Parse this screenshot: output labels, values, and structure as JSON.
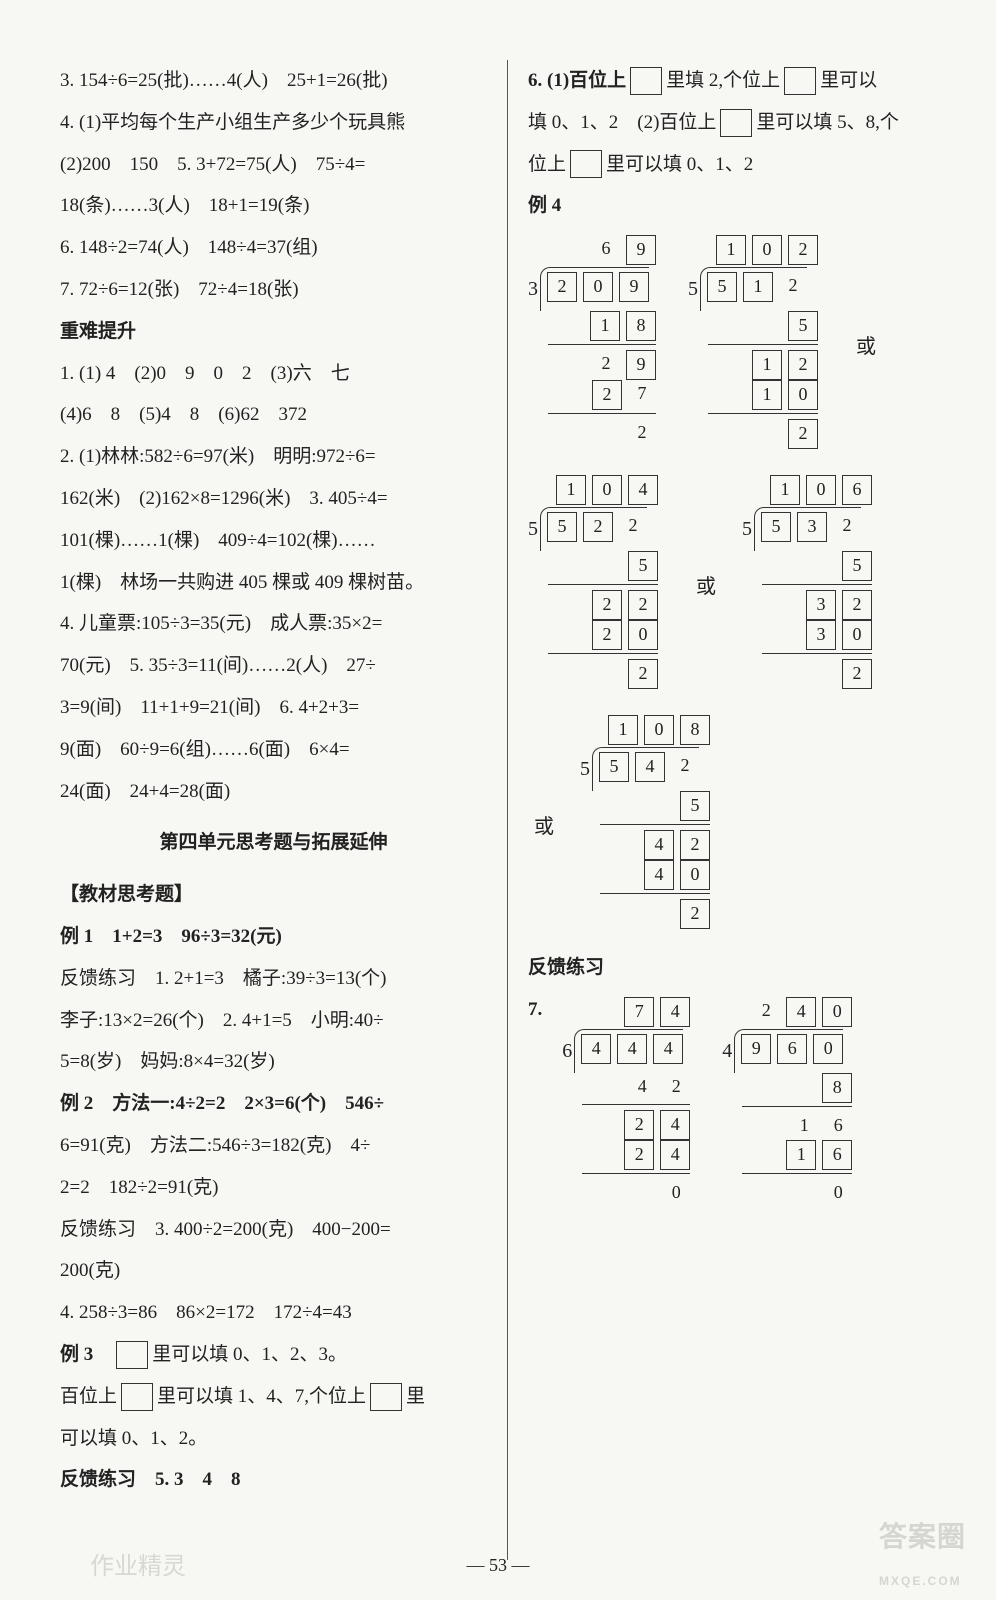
{
  "left": {
    "lines": [
      "3. 154÷6=25(批)……4(人)　25+1=26(批)",
      "4. (1)平均每个生产小组生产多少个玩具熊",
      "(2)200　150　5. 3+72=75(人)　75÷4=",
      "18(条)……3(人)　18+1=19(条)",
      "6. 148÷2=74(人)　148÷4=37(组)",
      "7. 72÷6=12(张)　72÷4=18(张)"
    ],
    "heavy_title": "重难提升",
    "heavy": [
      "1. (1) 4　(2)0　9　0　2　(3)六　七",
      "(4)6　8　(5)4　8　(6)62　372",
      "2. (1)林林:582÷6=97(米)　明明:972÷6=",
      "162(米)　(2)162×8=1296(米)　3. 405÷4=",
      "101(棵)……1(棵)　409÷4=102(棵)……",
      "1(棵)　林场一共购进 405 棵或 409 棵树苗。",
      "4. 儿童票:105÷3=35(元)　成人票:35×2=",
      "70(元)　5. 35÷3=11(间)……2(人)　27÷",
      "3=9(间)　11+1+9=21(间)　6. 4+2+3=",
      "9(面)　60÷9=6(组)……6(面)　6×4=",
      "24(面)　24+4=28(面)"
    ],
    "unit4_title": "第四单元思考题与拓展延伸",
    "bracket1": "【教材思考题】",
    "ex_lines": [
      "例 1　1+2=3　96÷3=32(元)",
      "反馈练习　1. 2+1=3　橘子:39÷3=13(个)",
      "李子:13×2=26(个)　2. 4+1=5　小明:40÷",
      "5=8(岁)　妈妈:8×4=32(岁)",
      "例 2　方法一:4÷2=2　2×3=6(个)　546÷",
      "6=91(克)　方法二:546÷3=182(克)　4÷",
      "2=2　182÷2=91(克)",
      "反馈练习　3. 400÷2=200(克)　400−200=",
      "200(克)",
      "4. 258÷3=86　86×2=172　172÷4=43"
    ],
    "ex3_prefix": "例 3　",
    "ex3_after": "里可以填 0、1、2、3。",
    "bai_prefix": "百位上",
    "bai_mid": "里可以填 1、4、7,个位上",
    "bai_after": "里",
    "bai_line2": "可以填 0、1、2。",
    "fk5": "反馈练习　5. 3　4　8"
  },
  "right": {
    "q6a_prefix": "6. (1)百位上",
    "q6a_mid": "里填 2,个位上",
    "q6a_suffix": "里可以",
    "q6a_line2_prefix": "填 0、1、2　(2)百位上",
    "q6a_line2_suffix": "里可以填 5、8,个",
    "q6a_line3_prefix": "位上",
    "q6a_line3_suffix": "里可以填 0、1、2",
    "ex4": "例 4",
    "or": "或",
    "ld1": {
      "divisor": "3",
      "quotient": [
        "6",
        "9"
      ],
      "dividend": [
        "2",
        "0",
        "9"
      ],
      "rows": [
        [
          "1",
          "8"
        ],
        [
          "_",
          "2",
          "9"
        ],
        [
          "_",
          "2",
          "7"
        ],
        [
          "_",
          "_",
          "2"
        ]
      ],
      "box_dividend": [
        true,
        true,
        true
      ],
      "box_quotient": [
        false,
        true
      ],
      "box_rows": [
        [
          true,
          true
        ],
        [
          false,
          false,
          true
        ],
        [
          false,
          true,
          false
        ],
        [
          false,
          false,
          false
        ]
      ]
    },
    "ld2": {
      "divisor": "5",
      "quotient": [
        "1",
        "0",
        "2"
      ],
      "dividend": [
        "5",
        "1",
        "2"
      ],
      "rows": [
        [
          "5"
        ],
        [
          "_",
          "1",
          "2"
        ],
        [
          "_",
          "1",
          "0"
        ],
        [
          "_",
          "_",
          "2"
        ]
      ],
      "box_dividend": [
        true,
        true,
        false
      ],
      "box_quotient": [
        true,
        true,
        true
      ],
      "box_rows": [
        [
          true
        ],
        [
          false,
          true,
          true
        ],
        [
          false,
          true,
          true
        ],
        [
          false,
          false,
          true
        ]
      ]
    },
    "ld3": {
      "divisor": "5",
      "quotient": [
        "1",
        "0",
        "4"
      ],
      "dividend": [
        "5",
        "2",
        "2"
      ],
      "rows": [
        [
          "5"
        ],
        [
          "_",
          "2",
          "2"
        ],
        [
          "_",
          "2",
          "0"
        ],
        [
          "_",
          "_",
          "2"
        ]
      ],
      "box_dividend": [
        true,
        true,
        false
      ],
      "box_quotient": [
        true,
        true,
        true
      ],
      "box_rows": [
        [
          true
        ],
        [
          false,
          true,
          true
        ],
        [
          false,
          true,
          true
        ],
        [
          false,
          false,
          true
        ]
      ]
    },
    "ld4": {
      "divisor": "5",
      "quotient": [
        "1",
        "0",
        "6"
      ],
      "dividend": [
        "5",
        "3",
        "2"
      ],
      "rows": [
        [
          "5"
        ],
        [
          "_",
          "3",
          "2"
        ],
        [
          "_",
          "3",
          "0"
        ],
        [
          "_",
          "_",
          "2"
        ]
      ],
      "box_dividend": [
        true,
        true,
        false
      ],
      "box_quotient": [
        true,
        true,
        true
      ],
      "box_rows": [
        [
          true
        ],
        [
          false,
          true,
          true
        ],
        [
          false,
          true,
          true
        ],
        [
          false,
          false,
          true
        ]
      ]
    },
    "ld5": {
      "divisor": "5",
      "quotient": [
        "1",
        "0",
        "8"
      ],
      "dividend": [
        "5",
        "4",
        "2"
      ],
      "rows": [
        [
          "5"
        ],
        [
          "_",
          "4",
          "2"
        ],
        [
          "_",
          "4",
          "0"
        ],
        [
          "_",
          "_",
          "2"
        ]
      ],
      "box_dividend": [
        true,
        true,
        false
      ],
      "box_quotient": [
        true,
        true,
        true
      ],
      "box_rows": [
        [
          true
        ],
        [
          false,
          true,
          true
        ],
        [
          false,
          true,
          true
        ],
        [
          false,
          false,
          true
        ]
      ]
    },
    "fk_title": "反馈练习",
    "q7": "7.",
    "ld7a": {
      "divisor": "6",
      "quotient": [
        "7",
        "4"
      ],
      "dividend": [
        "4",
        "4",
        "4"
      ],
      "rows": [
        [
          "4",
          "2"
        ],
        [
          "_",
          "2",
          "4"
        ],
        [
          "_",
          "2",
          "4"
        ],
        [
          "_",
          "_",
          "0"
        ]
      ],
      "box_dividend": [
        true,
        true,
        true
      ],
      "box_quotient": [
        true,
        true
      ],
      "box_rows": [
        [
          false,
          false
        ],
        [
          false,
          true,
          true
        ],
        [
          false,
          true,
          true
        ],
        [
          false,
          false,
          false
        ]
      ]
    },
    "ld7b": {
      "divisor": "4",
      "quotient": [
        "2",
        "4",
        "0"
      ],
      "dividend": [
        "9",
        "6",
        "0"
      ],
      "rows": [
        [
          "8"
        ],
        [
          "_",
          "1",
          "6"
        ],
        [
          "_",
          "1",
          "6"
        ],
        [
          "_",
          "_",
          "0"
        ]
      ],
      "box_dividend": [
        true,
        true,
        true
      ],
      "box_quotient": [
        false,
        true,
        true
      ],
      "box_rows": [
        [
          true
        ],
        [
          false,
          false,
          false
        ],
        [
          false,
          true,
          true
        ],
        [
          false,
          false,
          false
        ]
      ]
    }
  },
  "page_number": "— 53 —",
  "watermark_left": "作业精灵",
  "watermark_right": "答案圈",
  "watermark_right_sub": "MXQE.COM"
}
